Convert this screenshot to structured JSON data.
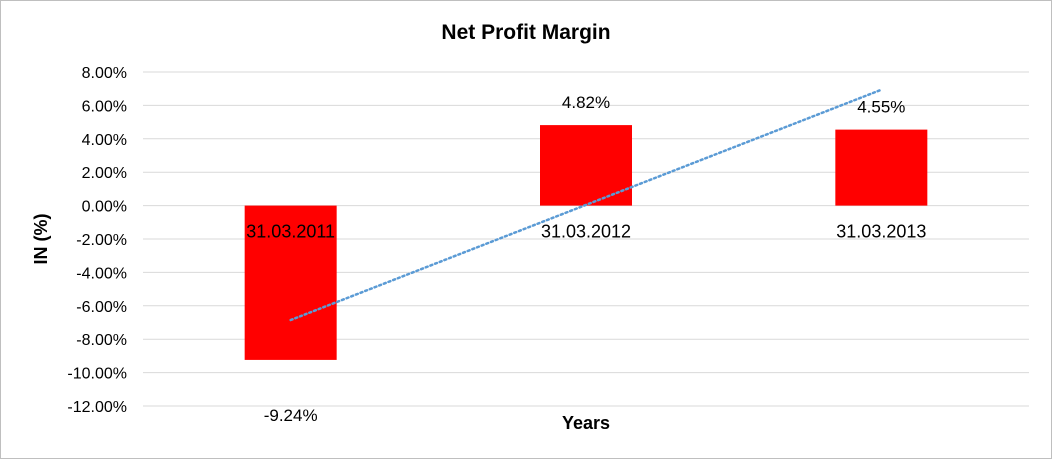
{
  "chart_data": {
    "type": "bar",
    "title": "Net Profit Margin",
    "xlabel": "Years",
    "ylabel": "IN (%)",
    "categories": [
      "31.03.2011",
      "31.03.2012",
      "31.03.2013"
    ],
    "series": [
      {
        "values": [
          -9.24,
          4.82,
          4.55
        ],
        "data_labels": [
          "-9.24%",
          "4.82%",
          "4.55%"
        ],
        "color": "#ff0000"
      }
    ],
    "ylim": [
      -12,
      8
    ],
    "yticks": [
      8,
      6,
      4,
      2,
      0,
      -2,
      -4,
      -6,
      -8,
      -10,
      -12
    ],
    "ytick_labels": [
      "8.00%",
      "6.00%",
      "4.00%",
      "2.00%",
      "0.00%",
      "-2.00%",
      "-4.00%",
      "-6.00%",
      "-8.00%",
      "-10.00%",
      "-12.00%"
    ],
    "grid": true,
    "legend": "none",
    "trendline": {
      "type": "linear",
      "style": "dotted",
      "color": "#5b9bd5"
    }
  }
}
